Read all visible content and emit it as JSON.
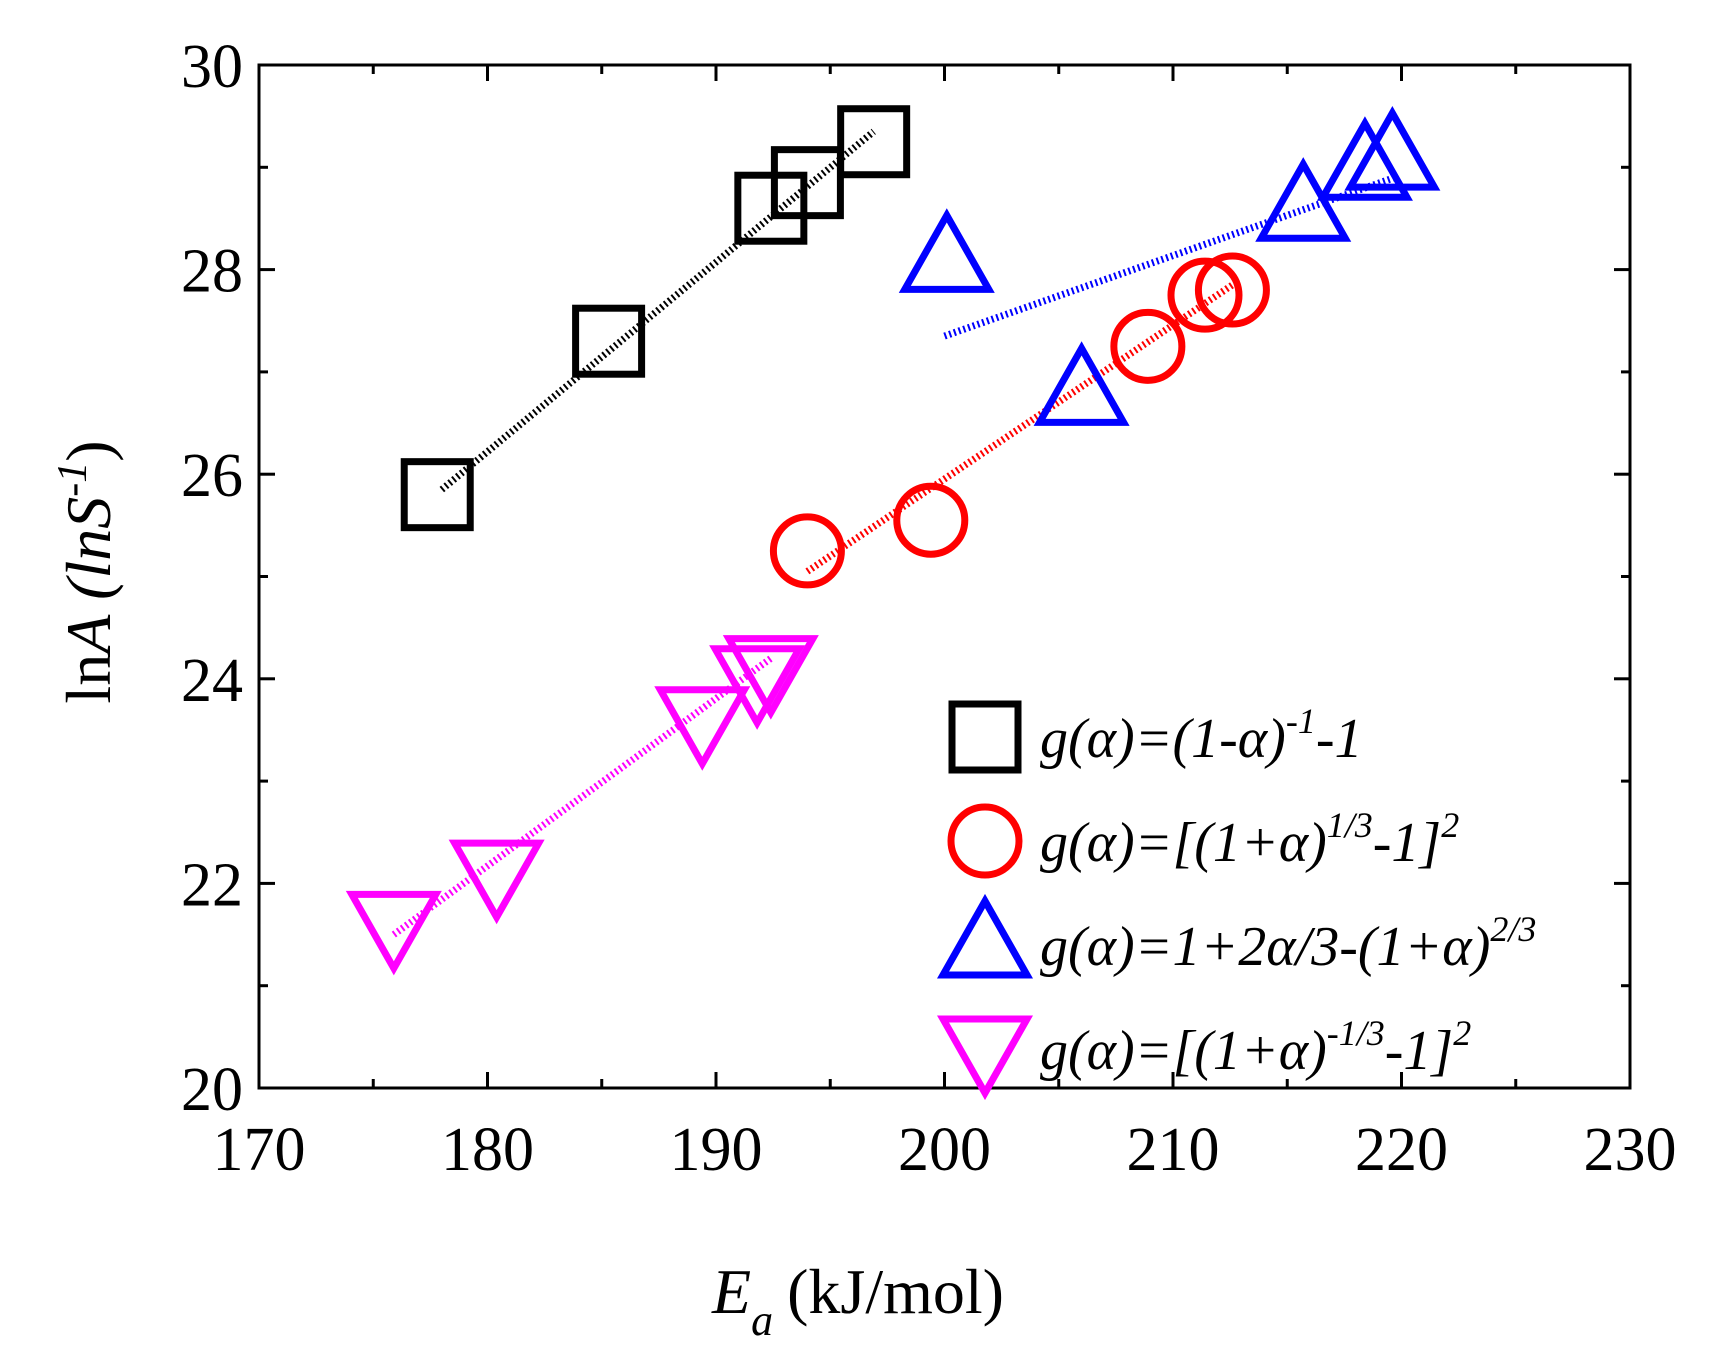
{
  "chart_data": {
    "type": "scatter",
    "title": "",
    "xlabel": "E_a (kJ/mol)",
    "xlabel_main": "E",
    "xlabel_sub": "a",
    "xlabel_unit": "(kJ/mol)",
    "ylabel": "lnA (lnS^-1)",
    "ylabel_ln": "ln",
    "ylabel_A": "A",
    "ylabel_open": " (",
    "ylabel_lnS": "lnS",
    "ylabel_sup": "-1",
    "ylabel_close": ")",
    "xlim": [
      170,
      230
    ],
    "ylim": [
      20,
      30
    ],
    "xticks": [
      170,
      180,
      190,
      200,
      210,
      220,
      230
    ],
    "yticks": [
      20,
      22,
      24,
      26,
      28,
      30
    ],
    "legend_position": "lower-right",
    "series": [
      {
        "name": "g(α)=(1-α)^-1-1",
        "legend_parts": [
          [
            "g(α)=(1-α)",
            "n"
          ],
          [
            "-1",
            "sup"
          ],
          [
            "-1",
            "n"
          ]
        ],
        "marker": "square",
        "color": "#000000",
        "points": [
          [
            177.8,
            25.8
          ],
          [
            185.3,
            27.3
          ],
          [
            192.4,
            28.6
          ],
          [
            194.0,
            28.85
          ],
          [
            196.9,
            29.25
          ]
        ],
        "fit": [
          [
            178.0,
            25.85
          ],
          [
            196.9,
            29.35
          ]
        ]
      },
      {
        "name": "g(α)=[(1+α)^1/3-1]^2",
        "legend_parts": [
          [
            "g(α)=[(1+α)",
            "n"
          ],
          [
            "1/3",
            "sup"
          ],
          [
            "-1]",
            "n"
          ],
          [
            "2",
            "sup"
          ]
        ],
        "marker": "circle",
        "color": "#ff0000",
        "points": [
          [
            194.0,
            25.25
          ],
          [
            199.4,
            25.55
          ],
          [
            208.9,
            27.25
          ],
          [
            211.4,
            27.75
          ],
          [
            212.6,
            27.8
          ]
        ],
        "fit": [
          [
            194.0,
            25.05
          ],
          [
            212.6,
            27.85
          ]
        ]
      },
      {
        "name": "g(α)=1+2α/3-(1+α)^2/3",
        "legend_parts": [
          [
            "g(α)=1+2α/3-(1+α)",
            "n"
          ],
          [
            "2/3",
            "sup"
          ]
        ],
        "marker": "triangle-up",
        "color": "#0000ff",
        "points": [
          [
            200.1,
            28.1
          ],
          [
            206.0,
            26.8
          ],
          [
            215.7,
            28.6
          ],
          [
            218.4,
            29.0
          ],
          [
            219.6,
            29.1
          ]
        ],
        "fit": [
          [
            200.0,
            27.35
          ],
          [
            219.7,
            28.9
          ]
        ]
      },
      {
        "name": "g(α)=[(1+α)^-1/3-1]^2",
        "legend_parts": [
          [
            "g(α)=[(1+α)",
            "n"
          ],
          [
            "-1/3",
            "sup"
          ],
          [
            "-1]",
            "n"
          ],
          [
            "2",
            "sup"
          ]
        ],
        "marker": "triangle-down",
        "color": "#ff00ff",
        "points": [
          [
            175.9,
            21.6
          ],
          [
            180.4,
            22.1
          ],
          [
            189.4,
            23.6
          ],
          [
            191.8,
            24.0
          ],
          [
            192.4,
            24.1
          ]
        ],
        "fit": [
          [
            175.9,
            21.5
          ],
          [
            192.4,
            24.2
          ]
        ]
      }
    ]
  }
}
